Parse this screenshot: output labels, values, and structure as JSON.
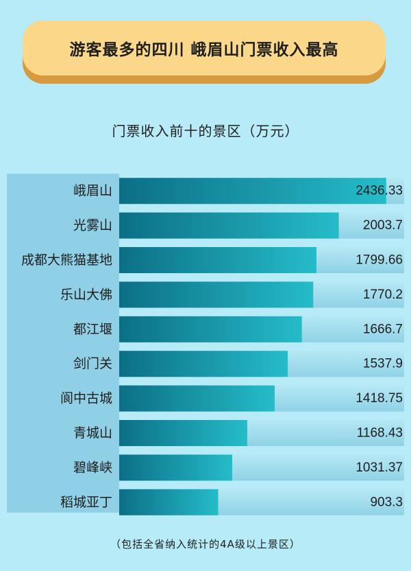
{
  "header": {
    "title": "游客最多的四川 峨眉山门票收入最高"
  },
  "chart_data": {
    "type": "bar",
    "orientation": "horizontal",
    "title": "门票收入前十的景区（万元）",
    "categories": [
      "峨眉山",
      "光雾山",
      "成都大熊猫基地",
      "乐山大佛",
      "都江堰",
      "剑门关",
      "阆中古城",
      "青城山",
      "碧峰峡",
      "稻城亚丁"
    ],
    "values": [
      2436.33,
      2003.7,
      1799.66,
      1770.2,
      1666.7,
      1537.9,
      1418.75,
      1168.43,
      1031.37,
      903.3
    ],
    "value_labels": [
      "2436.33",
      "2003.7",
      "1799.66",
      "1770.2",
      "1666.7",
      "1537.9",
      "1418.75",
      "1168.43",
      "1031.37",
      "903.3"
    ],
    "xlim": [
      0,
      2600
    ],
    "colors": {
      "bar_start": "#0c6f86",
      "bar_end": "#25bcc9",
      "track_top": "#b6e8f4",
      "track_bottom": "#8fd2e6"
    }
  },
  "footer": {
    "note": "（包括全省纳入统计的4A级以上景区）"
  }
}
